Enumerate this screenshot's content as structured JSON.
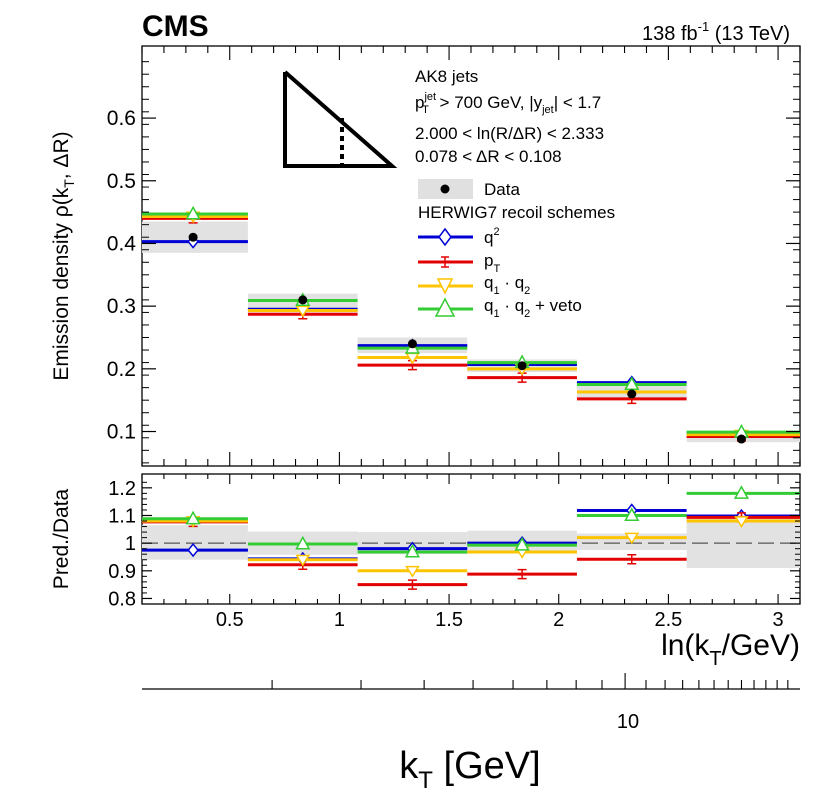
{
  "header": {
    "experiment": "CMS",
    "lumi": "138 fb",
    "lumi_exp": "-1",
    "energy": " (13 TeV)"
  },
  "info": {
    "jets": "AK8 jets",
    "pt_cut_a": "p",
    "pt_cut_sup": "jet",
    "pt_cut_sub": "T",
    "pt_cut_b": " > 700 GeV, |y",
    "pt_cut_sub2": "jet",
    "pt_cut_c": "| < 1.7",
    "ln_range": "2.000 < ln(R/ΔR) < 2.333",
    "dr_range": "0.078 < ΔR < 0.108"
  },
  "legend": {
    "data_label": "Data",
    "group_label": "HERWIG7 recoil schemes",
    "q2_label": "q",
    "q2_sup": "2",
    "pt_label": "p",
    "pt_sub": "T",
    "q1q2_a": "q",
    "q1q2_sub1": "1",
    "q1q2_mid": " · q",
    "q1q2_sub2": "2",
    "veto_a": "q",
    "veto_sub1": "1",
    "veto_mid": " · q",
    "veto_sub2": "2",
    "veto_tail": " + veto"
  },
  "axes": {
    "ylabel_top": "Emission density ρ(k",
    "ylabel_top_sub": "T",
    "ylabel_top_tail": ", ΔR)",
    "ylabel_bottom": "Pred./Data",
    "xlabel_main": "ln(k",
    "xlabel_main_sub": "T",
    "xlabel_main_tail": "/GeV)",
    "xlabel_secondary": "k",
    "xlabel_secondary_sub": "T",
    "xlabel_secondary_tail": " [GeV]",
    "secondary_tick_label": "10"
  },
  "chart_data": {
    "type": "step",
    "xlim": [
      0.1,
      3.1
    ],
    "top": {
      "ylim": [
        0.045,
        0.715
      ],
      "yticks": [
        0.1,
        0.2,
        0.3,
        0.4,
        0.5,
        0.6
      ],
      "ytick_labels": [
        "0.1",
        "0.2",
        "0.3",
        "0.4",
        "0.5",
        "0.6"
      ]
    },
    "ratio": {
      "ylim": [
        0.78,
        1.25
      ],
      "yticks": [
        0.8,
        0.9,
        1.0,
        1.1,
        1.2
      ],
      "ytick_labels": [
        "0.8",
        "0.9",
        "1",
        "1.1",
        "1.2"
      ],
      "reference": 1.0
    },
    "xticks": [
      0.5,
      1.0,
      1.5,
      2.0,
      2.5,
      3.0
    ],
    "xtick_labels": [
      "0.5",
      "1",
      "1.5",
      "2",
      "2.5",
      "3"
    ],
    "secondary_axis": {
      "scale": "log",
      "label_values": [
        10
      ]
    },
    "bins": [
      [
        0.1,
        0.583
      ],
      [
        0.583,
        1.083
      ],
      [
        1.083,
        1.583
      ],
      [
        1.583,
        2.083
      ],
      [
        2.083,
        2.583
      ],
      [
        2.583,
        3.1
      ]
    ],
    "bin_centers": [
      0.333,
      0.833,
      1.333,
      1.833,
      2.333,
      2.833
    ],
    "data": {
      "name": "Data",
      "values": [
        0.41,
        0.31,
        0.24,
        0.205,
        0.16,
        0.088
      ],
      "band_low": [
        0.385,
        0.29,
        0.225,
        0.195,
        0.15,
        0.083
      ],
      "band_high": [
        0.435,
        0.32,
        0.25,
        0.215,
        0.175,
        0.1
      ],
      "ratio_band_low": [
        0.94,
        0.958,
        0.96,
        0.965,
        0.975,
        0.91
      ],
      "ratio_band_high": [
        1.065,
        1.042,
        1.04,
        1.045,
        1.035,
        1.1
      ]
    },
    "series": [
      {
        "name": "q²",
        "color": "#0000d6",
        "marker": "diamond",
        "values": [
          0.403,
          0.295,
          0.237,
          0.207,
          0.178,
          0.097
        ],
        "ratio": [
          0.975,
          0.943,
          0.98,
          1.0,
          1.118,
          1.098
        ]
      },
      {
        "name": "pT",
        "color": "#e30000",
        "marker": "cross",
        "values": [
          0.44,
          0.287,
          0.206,
          0.186,
          0.152,
          0.092
        ],
        "ratio": [
          1.077,
          0.922,
          0.85,
          0.888,
          0.942,
          1.093
        ]
      },
      {
        "name": "q1·q2",
        "color": "#ffc400",
        "marker": "triangle-down",
        "values": [
          0.443,
          0.293,
          0.218,
          0.2,
          0.163,
          0.095
        ],
        "ratio": [
          1.08,
          0.94,
          0.9,
          0.968,
          1.02,
          1.08
        ]
      },
      {
        "name": "q1·q2 + veto",
        "color": "#33cc33",
        "marker": "triangle-up",
        "values": [
          0.447,
          0.309,
          0.233,
          0.21,
          0.175,
          0.099
        ],
        "ratio": [
          1.088,
          0.997,
          0.968,
          0.993,
          1.1,
          1.18
        ]
      }
    ]
  }
}
